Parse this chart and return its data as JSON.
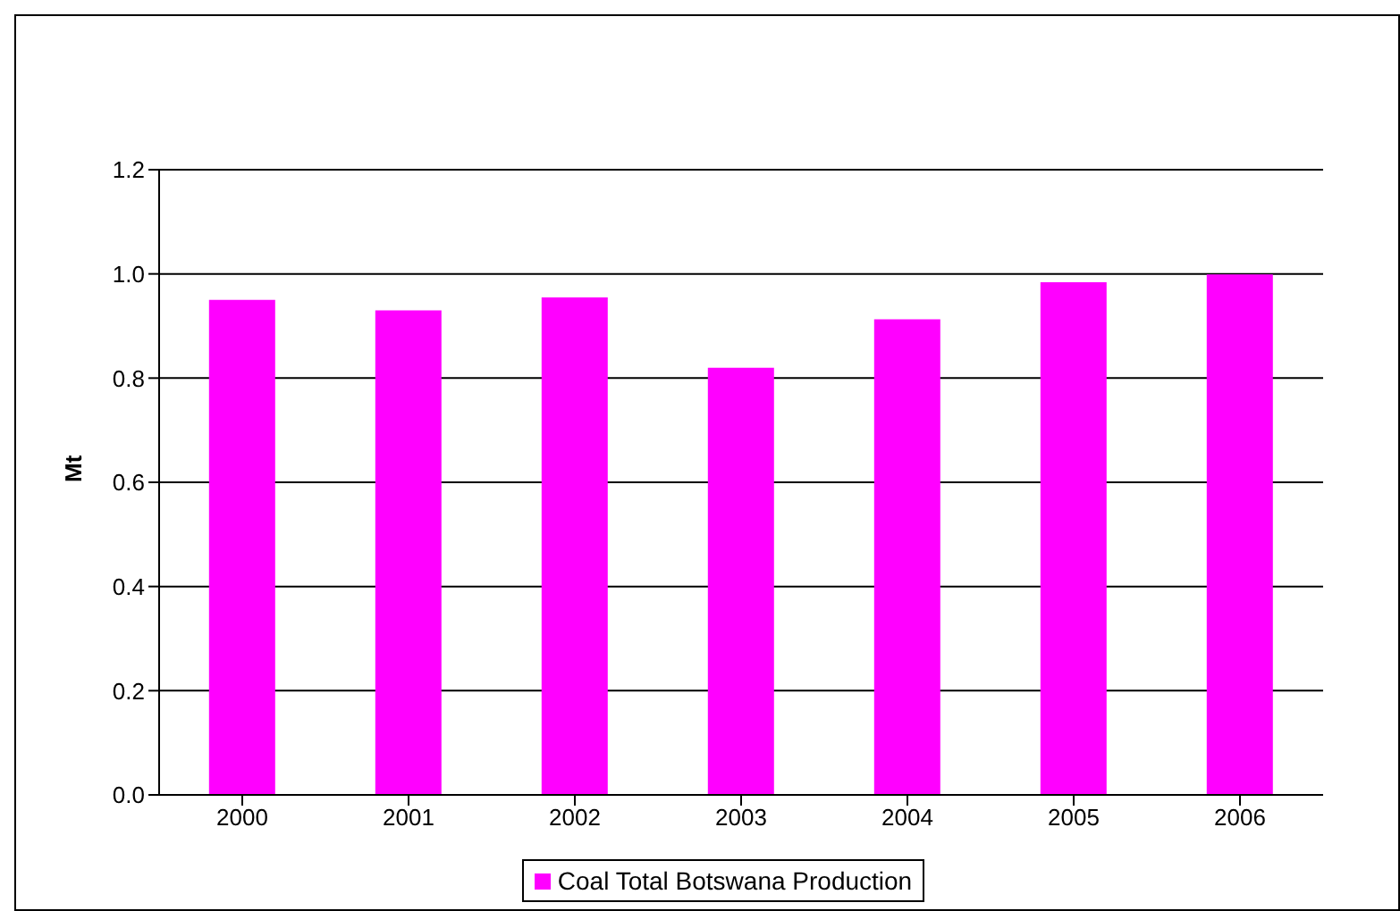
{
  "chart_data": {
    "type": "bar",
    "ylabel": "Mt",
    "categories": [
      "2000",
      "2001",
      "2002",
      "2003",
      "2004",
      "2005",
      "2006"
    ],
    "series": [
      {
        "name": "Coal Total Botswana Production",
        "color": "#ff00ff",
        "values": [
          0.95,
          0.93,
          0.955,
          0.82,
          0.913,
          0.984,
          0.999
        ]
      }
    ],
    "ylim": [
      0,
      1.2
    ],
    "yticks": [
      {
        "value": 0,
        "label": "0.0"
      },
      {
        "value": 0.2,
        "label": "0.2"
      },
      {
        "value": 0.4,
        "label": "0.4"
      },
      {
        "value": 0.6,
        "label": "0.6"
      },
      {
        "value": 0.8,
        "label": "0.8"
      },
      {
        "value": 1,
        "label": "1.0"
      },
      {
        "value": 1.2,
        "label": "1.2"
      }
    ],
    "grid": "y",
    "legend": "bottom"
  }
}
